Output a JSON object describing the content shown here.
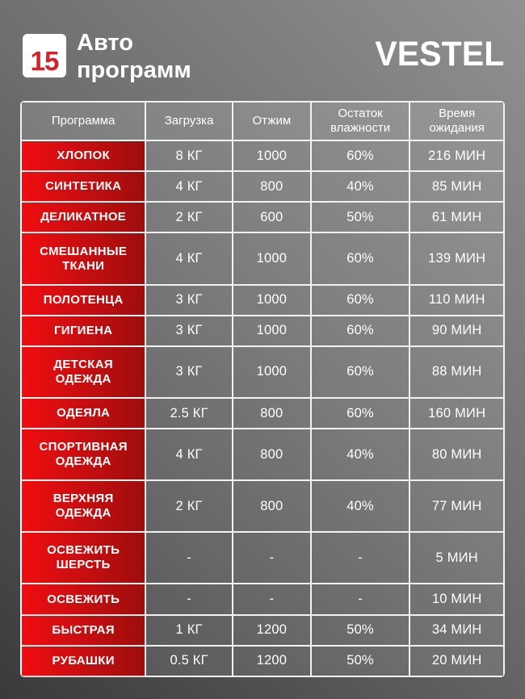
{
  "header": {
    "badge": "15",
    "title": "Авто\nпрограмм",
    "brand": "VESTEL"
  },
  "table": {
    "columns": [
      "Программа",
      "Загрузка",
      "Отжим",
      "Остаток\nвлажности",
      "Время\nожидания"
    ],
    "column_widths_percent": [
      25.8,
      18.0,
      16.2,
      20.5,
      19.5
    ],
    "rows": [
      [
        "ХЛОПОК",
        "8 КГ",
        "1000",
        "60%",
        "216 МИН"
      ],
      [
        "СИНТЕТИКА",
        "4 КГ",
        "800",
        "40%",
        "85 МИН"
      ],
      [
        "ДЕЛИКАТНОЕ",
        "2 КГ",
        "600",
        "50%",
        "61 МИН"
      ],
      [
        "СМЕШАННЫЕ\nТКАНИ",
        "4 КГ",
        "1000",
        "60%",
        "139 МИН"
      ],
      [
        "ПОЛОТЕНЦА",
        "3 КГ",
        "1000",
        "60%",
        "110 МИН"
      ],
      [
        "ГИГИЕНА",
        "3 КГ",
        "1000",
        "60%",
        "90 МИН"
      ],
      [
        "ДЕТСКАЯ\nОДЕЖДА",
        "3 КГ",
        "1000",
        "60%",
        "88 МИН"
      ],
      [
        "ОДЕЯЛА",
        "2.5 КГ",
        "800",
        "60%",
        "160 МИН"
      ],
      [
        "СПОРТИВНАЯ\nОДЕЖДА",
        "4 КГ",
        "800",
        "40%",
        "80 МИН"
      ],
      [
        "ВЕРХНЯЯ\nОДЕЖДА",
        "2 КГ",
        "800",
        "40%",
        "77 МИН"
      ],
      [
        "ОСВЕЖИТЬ\nШЕРСТЬ",
        "-",
        "-",
        "-",
        "5 МИН"
      ],
      [
        "ОСВЕЖИТЬ",
        "-",
        "-",
        "-",
        "10 МИН"
      ],
      [
        "БЫСТРАЯ",
        "1 КГ",
        "1200",
        "50%",
        "34 МИН"
      ],
      [
        "РУБАШКИ",
        "0.5 КГ",
        "1200",
        "50%",
        "20 МИН"
      ]
    ]
  },
  "colors": {
    "accent_red_light": "#f00d10",
    "accent_red_dark": "#9e0d0d",
    "badge_number": "#d2232a",
    "background_top_right": "#919191",
    "background_bottom_left": "#3a3a3a",
    "cell_border": "#f2f2f2",
    "text": "#ffffff"
  }
}
